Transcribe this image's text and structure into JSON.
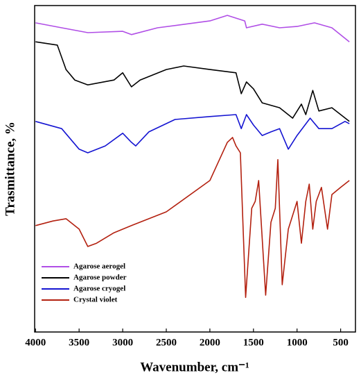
{
  "chart_data": {
    "type": "line",
    "xlabel": "Wavenumber, cm⁻¹",
    "ylabel": "Trasmittance, %",
    "xlim": [
      4010,
      330
    ],
    "ylim": [
      0,
      100
    ],
    "xticks": [
      4000,
      3500,
      3000,
      2500,
      2000,
      1500,
      1000,
      500
    ],
    "legend": "lower left",
    "series": [
      {
        "name": "Agarose aerogel",
        "color": "#b04ee6",
        "x": [
          4000,
          3700,
          3400,
          3000,
          2900,
          2600,
          2000,
          1800,
          1600,
          1580,
          1400,
          1200,
          1000,
          800,
          600,
          400
        ],
        "values": [
          94.7,
          93.2,
          91.7,
          92.1,
          91.1,
          93.2,
          95.3,
          97.0,
          95.3,
          93.2,
          94.3,
          93.2,
          93.6,
          94.7,
          93.2,
          88.9
        ]
      },
      {
        "name": "Agarose powder",
        "color": "#000000",
        "x": [
          4000,
          3750,
          3650,
          3550,
          3400,
          3100,
          3000,
          2900,
          2800,
          2500,
          2300,
          2000,
          1700,
          1640,
          1580,
          1500,
          1400,
          1200,
          1050,
          950,
          900,
          820,
          750,
          600,
          400
        ],
        "values": [
          88.9,
          87.9,
          80.4,
          77.2,
          75.7,
          77.2,
          79.4,
          75.1,
          77.2,
          80.4,
          81.5,
          80.4,
          79.4,
          73.0,
          76.6,
          74.5,
          70.2,
          68.7,
          65.5,
          69.8,
          66.6,
          74.0,
          67.7,
          68.7,
          64.5
        ]
      },
      {
        "name": "Agarose cryogel",
        "color": "#1414d2",
        "x": [
          4000,
          3700,
          3500,
          3400,
          3200,
          3000,
          2900,
          2850,
          2700,
          2400,
          2000,
          1700,
          1640,
          1580,
          1500,
          1400,
          1300,
          1200,
          1100,
          1000,
          850,
          750,
          600,
          450,
          400
        ],
        "values": [
          64.5,
          62.3,
          56.0,
          54.9,
          57.0,
          60.9,
          58.1,
          57.0,
          61.3,
          65.1,
          66.0,
          66.6,
          62.3,
          66.6,
          63.4,
          60.2,
          61.3,
          62.3,
          56.0,
          60.2,
          65.5,
          62.3,
          62.3,
          64.5,
          63.8
        ]
      },
      {
        "name": "Crystal violet",
        "color": "#b3200f",
        "x": [
          4000,
          3800,
          3650,
          3500,
          3400,
          3300,
          3100,
          2900,
          2500,
          2000,
          1800,
          1740,
          1700,
          1650,
          1590,
          1520,
          1480,
          1440,
          1360,
          1300,
          1250,
          1220,
          1170,
          1100,
          1000,
          950,
          900,
          860,
          820,
          780,
          720,
          650,
          600,
          500,
          400
        ],
        "values": [
          32.6,
          34.0,
          34.7,
          31.5,
          26.2,
          27.2,
          30.4,
          32.6,
          36.8,
          46.4,
          58.1,
          59.6,
          57.0,
          54.9,
          10.6,
          37.9,
          40.0,
          46.4,
          11.3,
          33.6,
          37.9,
          52.8,
          14.5,
          31.5,
          40.0,
          27.2,
          40.0,
          45.3,
          31.5,
          40.0,
          44.3,
          31.5,
          42.1,
          44.3,
          46.4
        ]
      }
    ]
  }
}
